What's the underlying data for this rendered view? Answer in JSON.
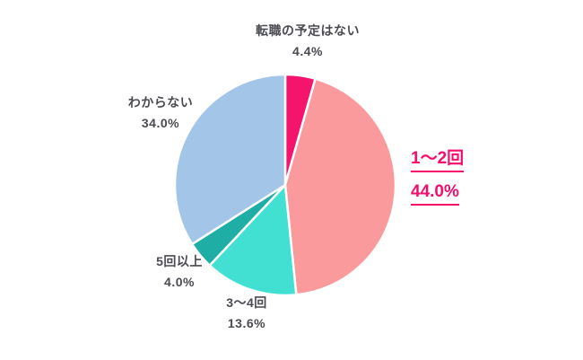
{
  "page": {
    "background_color": "#FFFFFF"
  },
  "chart_data": {
    "type": "pie",
    "title": "",
    "unit": "%",
    "direction": "clockwise",
    "start_angle_deg": 0,
    "legend_position": "none",
    "labels_position": "outside",
    "slices": [
      {
        "id": "no-plans",
        "label": "転職の予定はない",
        "value": 4.4,
        "display": "4.4%",
        "color": "#F4146B",
        "highlighted": false
      },
      {
        "id": "1-2-times",
        "label": "1〜2回",
        "value": 44.0,
        "display": "44.0%",
        "color": "#FA9A9D",
        "highlighted": true
      },
      {
        "id": "3-4-times",
        "label": "3〜4回",
        "value": 13.6,
        "display": "13.6%",
        "color": "#42E0D2",
        "highlighted": false
      },
      {
        "id": "5-plus-times",
        "label": "5回以上",
        "value": 4.0,
        "display": "4.0%",
        "color": "#1FAEA6",
        "highlighted": false
      },
      {
        "id": "unknown",
        "label": "わからない",
        "value": 34.0,
        "display": "34.0%",
        "color": "#A3C5E8",
        "highlighted": false
      }
    ],
    "colors": {
      "label_text": "#4A4A52",
      "highlight_text": "#F50C6C",
      "slice_border": "#FFFFFF"
    }
  }
}
